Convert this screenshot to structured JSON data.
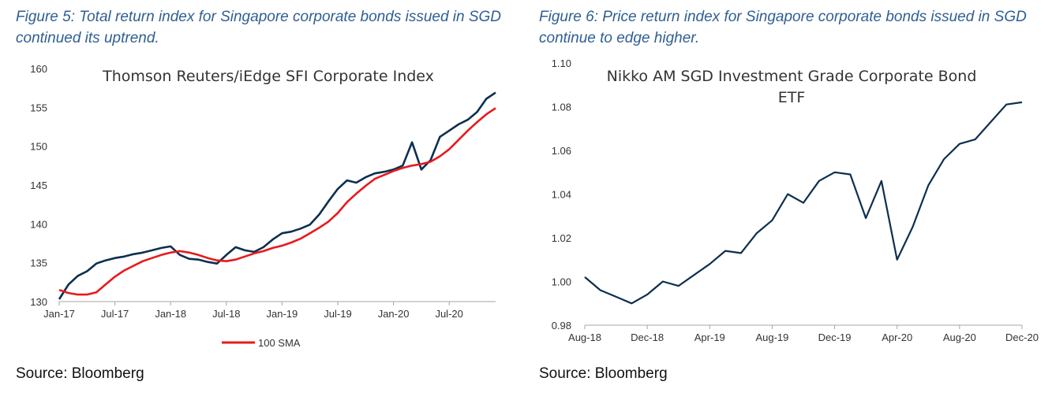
{
  "figures": [
    {
      "caption": "Figure 5: Total return index for Singapore corporate bonds issued in SGD continued its uptrend.",
      "source": "Source: Bloomberg"
    },
    {
      "caption": "Figure 6: Price return index for Singapore corporate bonds issued in SGD continue to edge higher.",
      "source": "Source: Bloomberg"
    }
  ],
  "chart_data": [
    {
      "type": "line",
      "title": "Thomson Reuters/iEdge SFI Corporate Index",
      "xlabel": "",
      "ylabel": "",
      "x_ticks": [
        "Jan-17",
        "Jul-17",
        "Jan-18",
        "Jul-18",
        "Jan-19",
        "Jul-19",
        "Jan-20",
        "Jul-20"
      ],
      "y_ticks": [
        "130",
        "135",
        "140",
        "145",
        "150",
        "155",
        "160"
      ],
      "ylim": [
        130,
        160
      ],
      "xlim": [
        "2017-01",
        "2020-12"
      ],
      "grid": false,
      "legend": "bottom",
      "colors": {
        "index": "#0d2f4f",
        "sma": "#e8191c"
      },
      "series": [
        {
          "key": "index",
          "name": "",
          "color": "#0d2f4f",
          "points": [
            [
              "2017-01",
              130.3
            ],
            [
              "2017-02",
              132.2
            ],
            [
              "2017-03",
              133.3
            ],
            [
              "2017-04",
              133.9
            ],
            [
              "2017-05",
              134.9
            ],
            [
              "2017-06",
              135.3
            ],
            [
              "2017-07",
              135.6
            ],
            [
              "2017-08",
              135.8
            ],
            [
              "2017-09",
              136.1
            ],
            [
              "2017-10",
              136.3
            ],
            [
              "2017-11",
              136.6
            ],
            [
              "2017-12",
              136.9
            ],
            [
              "2018-01",
              137.1
            ],
            [
              "2018-02",
              136.0
            ],
            [
              "2018-03",
              135.5
            ],
            [
              "2018-04",
              135.4
            ],
            [
              "2018-05",
              135.1
            ],
            [
              "2018-06",
              134.9
            ],
            [
              "2018-07",
              136.0
            ],
            [
              "2018-08",
              137.0
            ],
            [
              "2018-09",
              136.6
            ],
            [
              "2018-10",
              136.4
            ],
            [
              "2018-11",
              137.0
            ],
            [
              "2018-12",
              138.0
            ],
            [
              "2019-01",
              138.8
            ],
            [
              "2019-02",
              139.0
            ],
            [
              "2019-03",
              139.4
            ],
            [
              "2019-04",
              139.9
            ],
            [
              "2019-05",
              141.2
            ],
            [
              "2019-06",
              142.9
            ],
            [
              "2019-07",
              144.5
            ],
            [
              "2019-08",
              145.6
            ],
            [
              "2019-09",
              145.3
            ],
            [
              "2019-10",
              146.0
            ],
            [
              "2019-11",
              146.5
            ],
            [
              "2019-12",
              146.7
            ],
            [
              "2020-01",
              147.0
            ],
            [
              "2020-02",
              147.5
            ],
            [
              "2020-03",
              150.5
            ],
            [
              "2020-04",
              147.0
            ],
            [
              "2020-05",
              148.2
            ],
            [
              "2020-06",
              151.2
            ],
            [
              "2020-07",
              152.0
            ],
            [
              "2020-08",
              152.8
            ],
            [
              "2020-09",
              153.4
            ],
            [
              "2020-10",
              154.4
            ],
            [
              "2020-11",
              156.1
            ],
            [
              "2020-12",
              156.9
            ]
          ]
        },
        {
          "key": "sma",
          "name": "100 SMA",
          "color": "#e8191c",
          "points": [
            [
              "2017-01",
              131.5
            ],
            [
              "2017-02",
              131.1
            ],
            [
              "2017-03",
              130.9
            ],
            [
              "2017-04",
              130.9
            ],
            [
              "2017-05",
              131.2
            ],
            [
              "2017-06",
              132.2
            ],
            [
              "2017-07",
              133.2
            ],
            [
              "2017-08",
              134.0
            ],
            [
              "2017-09",
              134.6
            ],
            [
              "2017-10",
              135.2
            ],
            [
              "2017-11",
              135.6
            ],
            [
              "2017-12",
              136.0
            ],
            [
              "2018-01",
              136.3
            ],
            [
              "2018-02",
              136.5
            ],
            [
              "2018-03",
              136.3
            ],
            [
              "2018-04",
              136.0
            ],
            [
              "2018-05",
              135.6
            ],
            [
              "2018-06",
              135.3
            ],
            [
              "2018-07",
              135.2
            ],
            [
              "2018-08",
              135.4
            ],
            [
              "2018-09",
              135.8
            ],
            [
              "2018-10",
              136.2
            ],
            [
              "2018-11",
              136.5
            ],
            [
              "2018-12",
              136.9
            ],
            [
              "2019-01",
              137.2
            ],
            [
              "2019-02",
              137.6
            ],
            [
              "2019-03",
              138.1
            ],
            [
              "2019-04",
              138.8
            ],
            [
              "2019-05",
              139.5
            ],
            [
              "2019-06",
              140.3
            ],
            [
              "2019-07",
              141.4
            ],
            [
              "2019-08",
              142.8
            ],
            [
              "2019-09",
              143.9
            ],
            [
              "2019-10",
              144.9
            ],
            [
              "2019-11",
              145.8
            ],
            [
              "2019-12",
              146.3
            ],
            [
              "2020-01",
              146.8
            ],
            [
              "2020-02",
              147.2
            ],
            [
              "2020-03",
              147.5
            ],
            [
              "2020-04",
              147.7
            ],
            [
              "2020-05",
              148.0
            ],
            [
              "2020-06",
              148.7
            ],
            [
              "2020-07",
              149.6
            ],
            [
              "2020-08",
              150.8
            ],
            [
              "2020-09",
              152.0
            ],
            [
              "2020-10",
              153.1
            ],
            [
              "2020-11",
              154.1
            ],
            [
              "2020-12",
              154.9
            ]
          ]
        }
      ]
    },
    {
      "type": "line",
      "title": "Nikko AM SGD Investment Grade Corporate Bond ETF",
      "xlabel": "",
      "ylabel": "",
      "x_ticks": [
        "Aug-18",
        "Dec-18",
        "Apr-19",
        "Aug-19",
        "Dec-19",
        "Apr-20",
        "Aug-20",
        "Dec-20"
      ],
      "y_ticks": [
        "0.98",
        "1.00",
        "1.02",
        "1.04",
        "1.06",
        "1.08",
        "1.10"
      ],
      "ylim": [
        0.98,
        1.1
      ],
      "xlim": [
        "2018-08",
        "2020-12"
      ],
      "grid": false,
      "legend": "none",
      "colors": {
        "etf": "#0d2f4f"
      },
      "series": [
        {
          "key": "etf",
          "name": "",
          "color": "#0d2f4f",
          "points": [
            [
              "2018-08",
              1.002
            ],
            [
              "2018-09",
              0.996
            ],
            [
              "2018-10",
              0.993
            ],
            [
              "2018-11",
              0.99
            ],
            [
              "2018-12",
              0.994
            ],
            [
              "2019-01",
              1.0
            ],
            [
              "2019-02",
              0.998
            ],
            [
              "2019-03",
              1.003
            ],
            [
              "2019-04",
              1.008
            ],
            [
              "2019-05",
              1.014
            ],
            [
              "2019-06",
              1.013
            ],
            [
              "2019-07",
              1.022
            ],
            [
              "2019-08",
              1.028
            ],
            [
              "2019-09",
              1.04
            ],
            [
              "2019-10",
              1.036
            ],
            [
              "2019-11",
              1.046
            ],
            [
              "2019-12",
              1.05
            ],
            [
              "2020-01",
              1.049
            ],
            [
              "2020-02",
              1.029
            ],
            [
              "2020-03",
              1.046
            ],
            [
              "2020-04",
              1.01
            ],
            [
              "2020-05",
              1.025
            ],
            [
              "2020-06",
              1.044
            ],
            [
              "2020-07",
              1.056
            ],
            [
              "2020-08",
              1.063
            ],
            [
              "2020-09",
              1.065
            ],
            [
              "2020-10",
              1.073
            ],
            [
              "2020-11",
              1.081
            ],
            [
              "2020-12",
              1.082
            ]
          ]
        }
      ]
    }
  ]
}
